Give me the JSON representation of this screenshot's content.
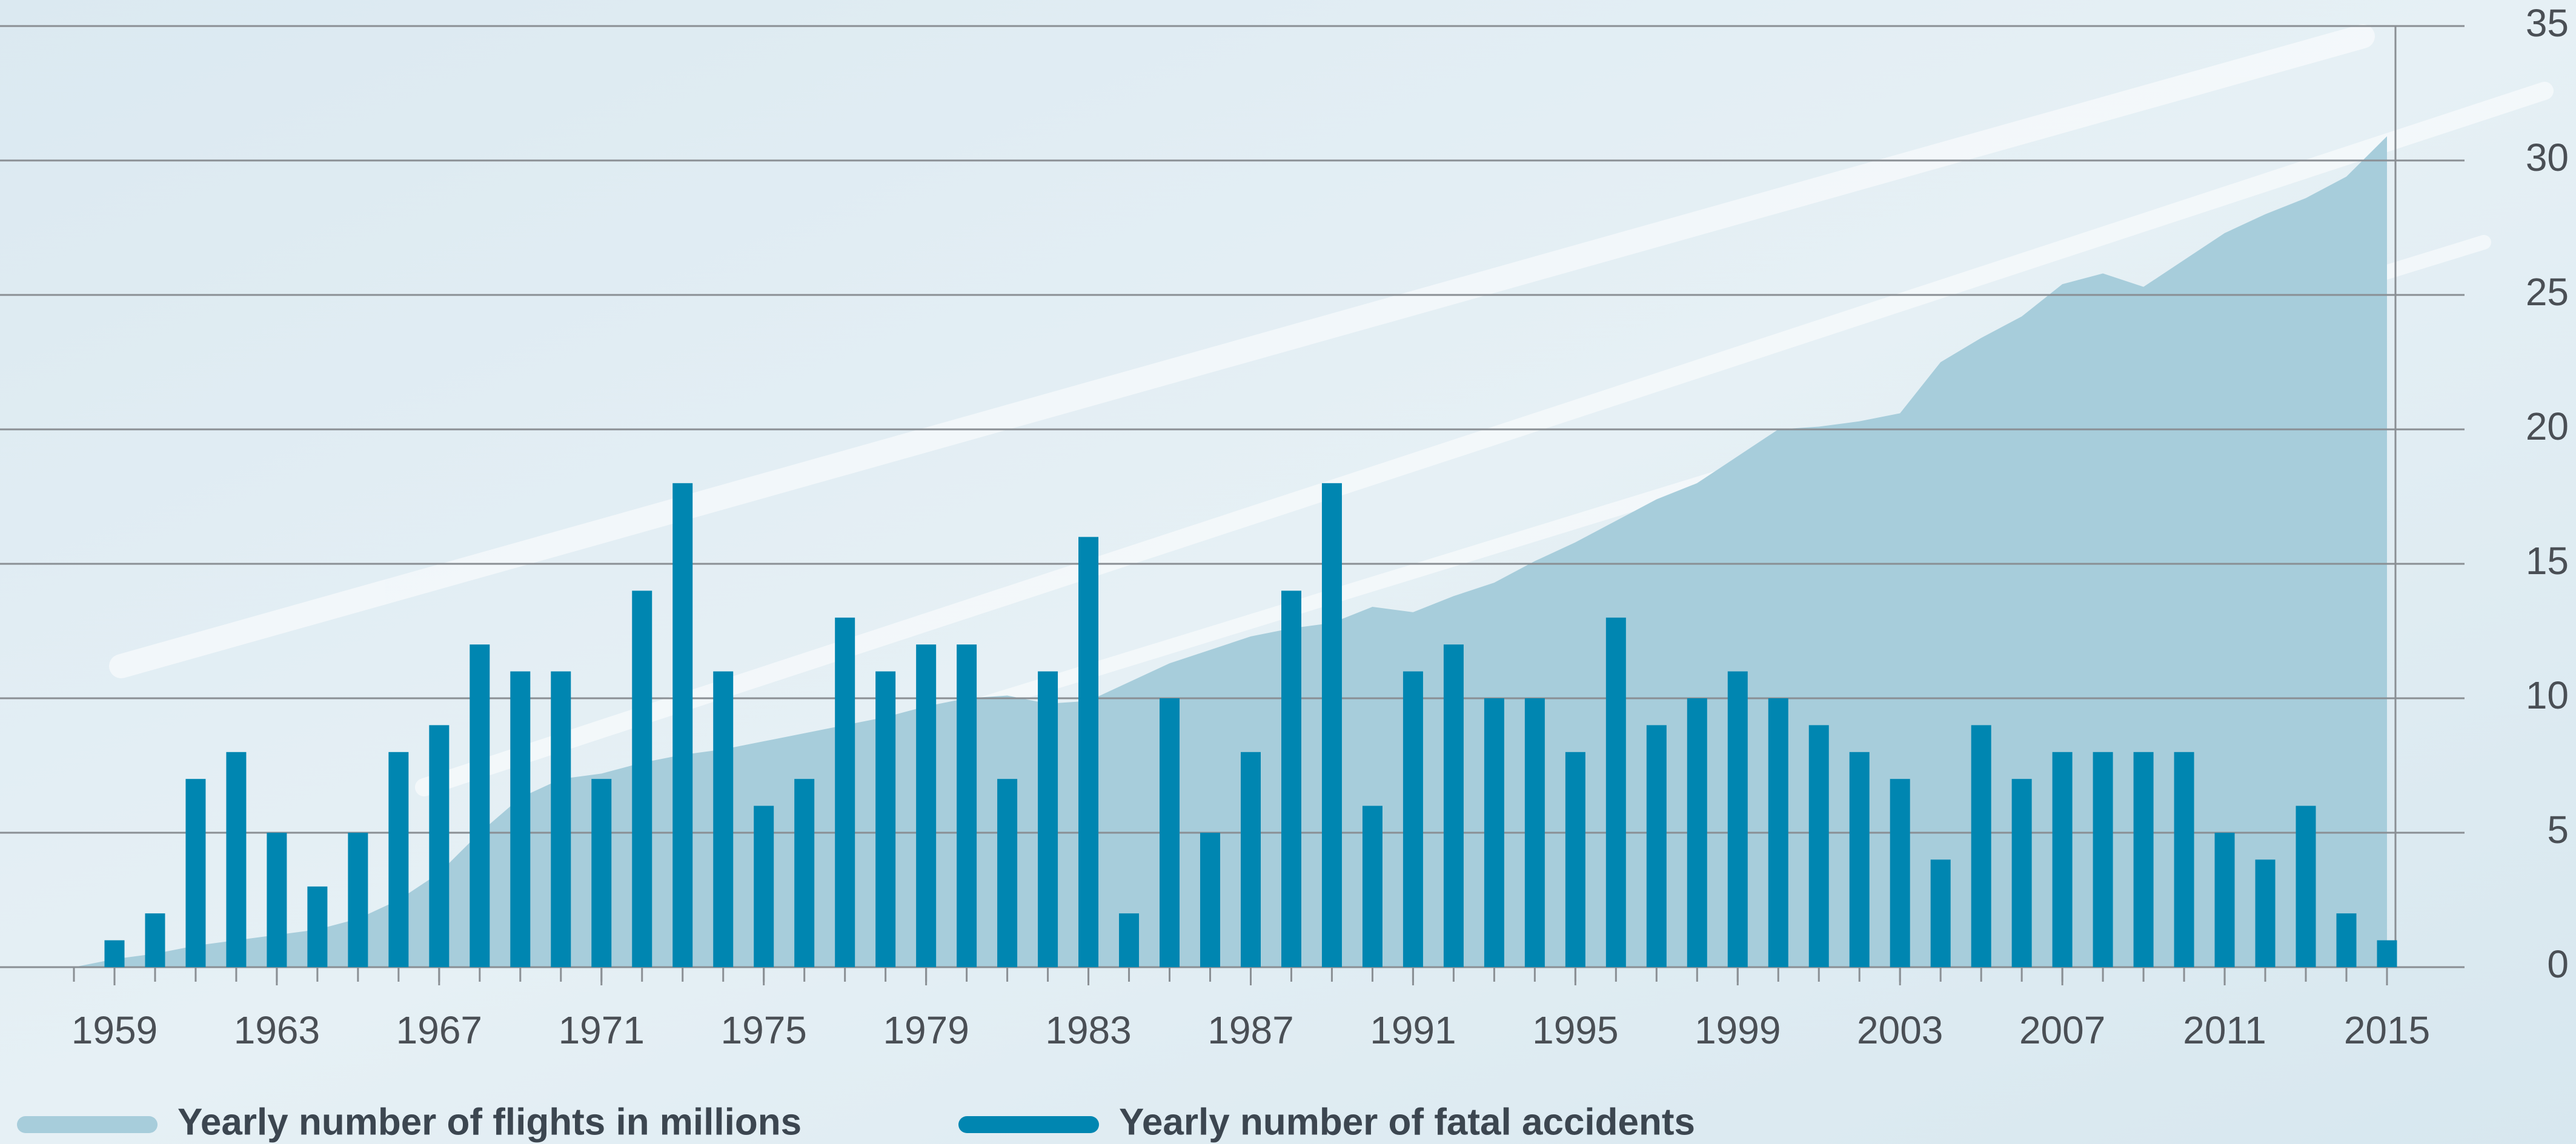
{
  "chart_data": {
    "type": "combo",
    "xlim": [
      1958,
      2015
    ],
    "ylim": [
      0,
      35
    ],
    "yticks": [
      0,
      5,
      10,
      15,
      20,
      25,
      30,
      35
    ],
    "xticks": [
      1959,
      1963,
      1967,
      1971,
      1975,
      1979,
      1983,
      1987,
      1991,
      1995,
      1999,
      2003,
      2007,
      2011,
      2015
    ],
    "grid": true,
    "legend": "bottom",
    "series": [
      {
        "name": "Yearly number of flights in millions",
        "type": "area",
        "color": "#a7cddb",
        "x": [
          1958,
          1959,
          1960,
          1961,
          1962,
          1963,
          1964,
          1965,
          1966,
          1967,
          1968,
          1969,
          1970,
          1971,
          1972,
          1973,
          1974,
          1975,
          1976,
          1977,
          1978,
          1979,
          1980,
          1981,
          1982,
          1983,
          1984,
          1985,
          1986,
          1987,
          1988,
          1989,
          1990,
          1991,
          1992,
          1993,
          1994,
          1995,
          1996,
          1997,
          1998,
          1999,
          2000,
          2001,
          2002,
          2003,
          2004,
          2005,
          2006,
          2007,
          2008,
          2009,
          2010,
          2011,
          2012,
          2013,
          2014,
          2015
        ],
        "values": [
          0,
          0.3,
          0.5,
          0.8,
          1.0,
          1.2,
          1.4,
          1.8,
          2.5,
          3.5,
          5,
          6.3,
          7,
          7.2,
          7.6,
          7.9,
          8.1,
          8.4,
          8.7,
          9,
          9.3,
          9.7,
          10,
          10.1,
          9.8,
          9.9,
          10.6,
          11.3,
          11.8,
          12.3,
          12.6,
          12.8,
          13.4,
          13.2,
          13.8,
          14.3,
          15.1,
          15.8,
          16.6,
          17.4,
          18,
          19,
          20,
          20.1,
          20.3,
          20.6,
          22.5,
          23.4,
          24.2,
          25.4,
          25.8,
          25.3,
          26.3,
          27.3,
          28,
          28.6,
          29.4,
          30.9
        ]
      },
      {
        "name": "Yearly number of fatal accidents",
        "type": "bar",
        "color": "#0086b1",
        "x": [
          1959,
          1960,
          1961,
          1962,
          1963,
          1964,
          1965,
          1966,
          1967,
          1968,
          1969,
          1970,
          1971,
          1972,
          1973,
          1974,
          1975,
          1976,
          1977,
          1978,
          1979,
          1980,
          1981,
          1982,
          1983,
          1984,
          1985,
          1986,
          1987,
          1988,
          1989,
          1990,
          1991,
          1992,
          1993,
          1994,
          1995,
          1996,
          1997,
          1998,
          1999,
          2000,
          2001,
          2002,
          2003,
          2004,
          2005,
          2006,
          2007,
          2008,
          2009,
          2010,
          2011,
          2012,
          2013,
          2014,
          2015
        ],
        "values": [
          1,
          2,
          7,
          8,
          5,
          3,
          5,
          8,
          9,
          12,
          11,
          11,
          7,
          14,
          18,
          11,
          6,
          7,
          13,
          11,
          12,
          12,
          7,
          11,
          16,
          2,
          10,
          5,
          8,
          14,
          18,
          6,
          11,
          12,
          10,
          10,
          8,
          13,
          9,
          10,
          11,
          10,
          9,
          8,
          7,
          4,
          9,
          7,
          8,
          8,
          8,
          8,
          5,
          4,
          6,
          2,
          1
        ]
      }
    ]
  }
}
